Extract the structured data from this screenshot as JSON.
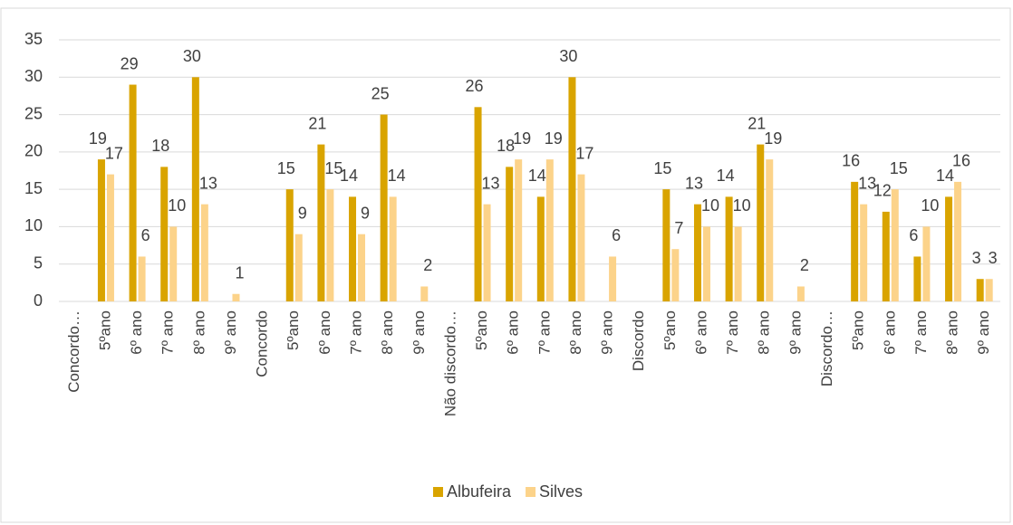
{
  "chart_data": {
    "type": "bar",
    "categories": [
      "Concordo…",
      "5ºano",
      "6º ano",
      "7º ano",
      "8º ano",
      "9º ano",
      "Concordo",
      "5ºano",
      "6º ano",
      "7º ano",
      "8º ano",
      "9º ano",
      "Não discordo…",
      "5ºano",
      "6º ano",
      "7º ano",
      "8º ano",
      "9º ano",
      "Discordo",
      "5ºano",
      "6º ano",
      "7º ano",
      "8º ano",
      "9º ano",
      "Discordo…",
      "5ºano",
      "6º ano",
      "7º ano",
      "8º ano",
      "9º ano"
    ],
    "series": [
      {
        "name": "Albufeira",
        "color": "#d9a400",
        "values": [
          null,
          19,
          29,
          18,
          30,
          null,
          null,
          15,
          21,
          14,
          25,
          null,
          null,
          26,
          18,
          14,
          30,
          null,
          null,
          15,
          13,
          14,
          21,
          null,
          null,
          16,
          12,
          6,
          14,
          3
        ]
      },
      {
        "name": "Silves",
        "color": "#fcd38a",
        "values": [
          null,
          17,
          6,
          10,
          13,
          1,
          null,
          9,
          15,
          9,
          14,
          2,
          null,
          13,
          19,
          19,
          17,
          6,
          null,
          7,
          10,
          10,
          19,
          2,
          null,
          13,
          15,
          10,
          16,
          3
        ]
      }
    ],
    "ylim": [
      0,
      35
    ],
    "yticks": [
      0,
      5,
      10,
      15,
      20,
      25,
      30,
      35
    ],
    "grid": true,
    "legend": "bottom"
  }
}
